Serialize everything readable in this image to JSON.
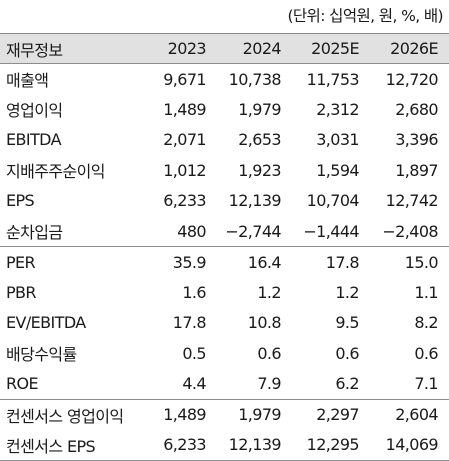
{
  "unit_note": "(단위: 십억원, 원, %, 배)",
  "header": [
    "재무정보",
    "2023",
    "2024",
    "2025E",
    "2026E"
  ],
  "groups": [
    [
      {
        "label": "매출액",
        "values": [
          "9,671",
          "10,738",
          "11,753",
          "12,720"
        ]
      },
      {
        "label": "영업이익",
        "values": [
          "1,489",
          "1,979",
          "2,312",
          "2,680"
        ]
      },
      {
        "label": "EBITDA",
        "values": [
          "2,071",
          "2,653",
          "3,031",
          "3,396"
        ]
      },
      {
        "label": "지배주주순이익",
        "values": [
          "1,012",
          "1,923",
          "1,594",
          "1,897"
        ]
      },
      {
        "label": "EPS",
        "values": [
          "6,233",
          "12,139",
          "10,704",
          "12,742"
        ]
      },
      {
        "label": "순차입금",
        "values": [
          "480",
          "−2,744",
          "−1,444",
          "−2,408"
        ]
      }
    ],
    [
      {
        "label": "PER",
        "values": [
          "35.9",
          "16.4",
          "17.8",
          "15.0"
        ]
      },
      {
        "label": "PBR",
        "values": [
          "1.6",
          "1.2",
          "1.2",
          "1.1"
        ]
      },
      {
        "label": "EV/EBITDA",
        "values": [
          "17.8",
          "10.8",
          "9.5",
          "8.2"
        ]
      },
      {
        "label": "배당수익률",
        "values": [
          "0.5",
          "0.6",
          "0.6",
          "0.6"
        ]
      },
      {
        "label": "ROE",
        "values": [
          "4.4",
          "7.9",
          "6.2",
          "7.1"
        ]
      }
    ],
    [
      {
        "label": "컨센서스 영업이익",
        "values": [
          "1,489",
          "1,979",
          "2,297",
          "2,604"
        ]
      },
      {
        "label": "컨센서스 EPS",
        "values": [
          "6,233",
          "12,139",
          "12,295",
          "14,069"
        ]
      }
    ]
  ]
}
